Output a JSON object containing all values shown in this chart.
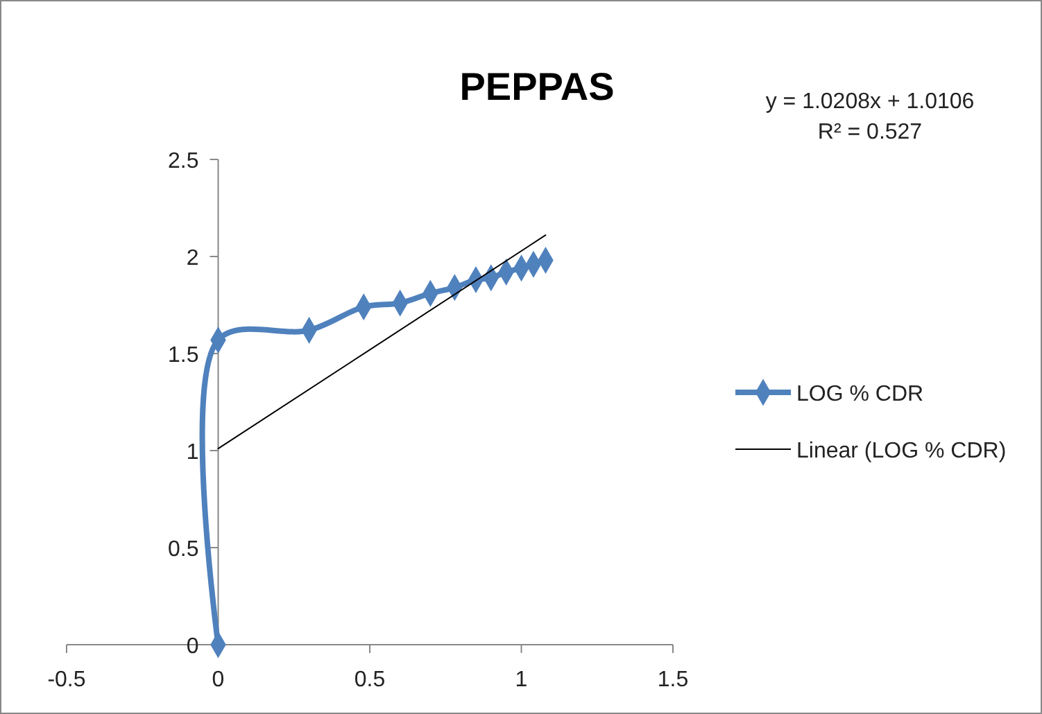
{
  "chart_data": {
    "type": "line",
    "title": "PEPPAS",
    "annotations": [
      "y = 1.0208x + 1.0106",
      "R² = 0.527"
    ],
    "xlim": [
      -0.5,
      1.5
    ],
    "xticks": [
      -0.5,
      0,
      0.5,
      1,
      1.5
    ],
    "ylim": [
      0,
      2.5
    ],
    "yticks": [
      0,
      0.5,
      1,
      1.5,
      2,
      2.5
    ],
    "grid": false,
    "legend": "right",
    "series": [
      {
        "name": "LOG % CDR",
        "color": "#4f81bd",
        "marker": "diamond",
        "x": [
          0,
          0,
          0.3,
          0.48,
          0.6,
          0.7,
          0.78,
          0.85,
          0.9,
          0.95,
          1,
          1.04,
          1.08
        ],
        "values": [
          0,
          1.57,
          1.62,
          1.74,
          1.76,
          1.81,
          1.84,
          1.88,
          1.89,
          1.92,
          1.94,
          1.96,
          1.98
        ]
      },
      {
        "name": "Linear (LOG % CDR)",
        "color": "#000000",
        "marker": "none",
        "x": [
          0,
          1.08
        ],
        "values": [
          1.01,
          2.11
        ]
      }
    ]
  }
}
